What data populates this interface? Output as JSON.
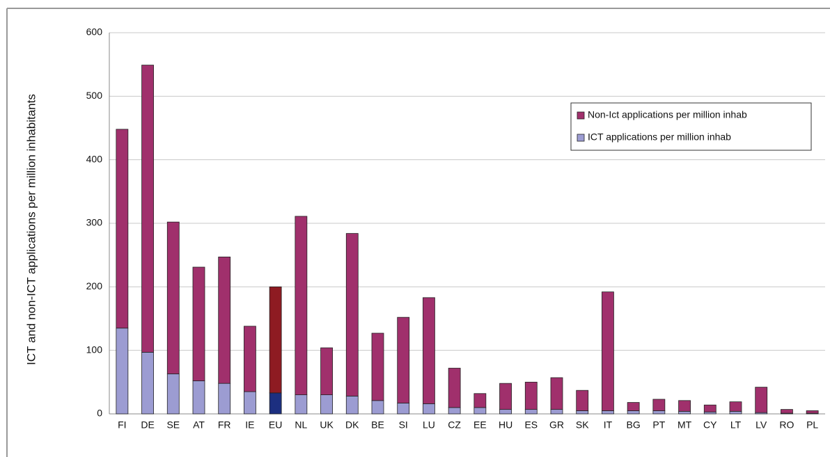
{
  "chart_data": {
    "type": "stacked_bar",
    "y_label": "ICT and non-ICT applications per million inhabitants",
    "categories": [
      "FI",
      "DE",
      "SE",
      "AT",
      "FR",
      "IE",
      "EU",
      "NL",
      "UK",
      "DK",
      "BE",
      "SI",
      "LU",
      "CZ",
      "EE",
      "HU",
      "ES",
      "GR",
      "SK",
      "IT",
      "BG",
      "PT",
      "MT",
      "CY",
      "LT",
      "LV",
      "RO",
      "PL"
    ],
    "series": [
      {
        "name": "ICT applications per million inhab",
        "color": "#9c9cd2",
        "highlight_color": "#1c2f80",
        "values": [
          135,
          97,
          63,
          52,
          48,
          35,
          33,
          30,
          30,
          28,
          21,
          17,
          16,
          10,
          10,
          7,
          7,
          7,
          5,
          5,
          5,
          5,
          4,
          3,
          4,
          2,
          1,
          1
        ]
      },
      {
        "name": "Non-Ict applications per million inhab",
        "color": "#a0306c",
        "highlight_color": "#8e1b22",
        "values": [
          313,
          452,
          239,
          179,
          199,
          103,
          167,
          281,
          74,
          256,
          106,
          135,
          167,
          62,
          22,
          41,
          43,
          50,
          32,
          187,
          13,
          18,
          17,
          11,
          15,
          40,
          6,
          4
        ]
      }
    ],
    "highlight_category": "EU",
    "ylim": [
      0,
      600
    ],
    "yticks": [
      0,
      100,
      200,
      300,
      400,
      500,
      600
    ],
    "grid": true,
    "legend": "upper right"
  }
}
